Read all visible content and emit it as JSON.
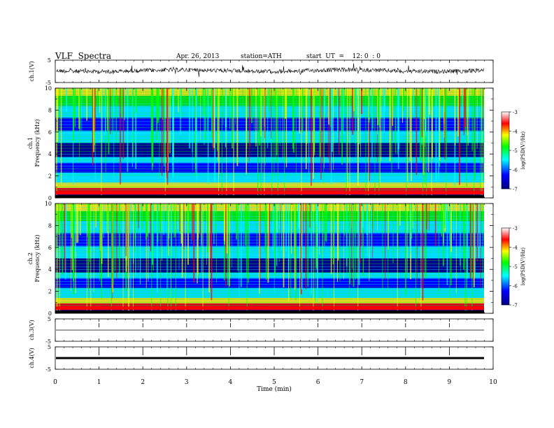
{
  "header": {
    "title": "VLF  Spectra",
    "date": "Apr. 26, 2013",
    "station": "station=ATH",
    "start": "start  UT  =    12: 0  : 0"
  },
  "colors": {
    "colormap": [
      "#000080",
      "#0000ff",
      "#00ffff",
      "#00ff00",
      "#ffff00",
      "#ff0000",
      "#ffffff"
    ],
    "trace": "#000000"
  },
  "chart_data": [
    {
      "type": "line",
      "panel": "ch1-waveform",
      "ylabel": "ch.1(V)",
      "ylim": [
        -5,
        5
      ],
      "yticks": [
        "5",
        "-5"
      ],
      "x_range_min": [
        0,
        9.8
      ],
      "description_level": "noisy trace near +0.2 V with small spikes"
    },
    {
      "type": "heatmap",
      "panel": "ch1-spectrogram",
      "ylabel": "ch.1\nFrequency  (kHz)",
      "ylabel_lines": [
        "ch.1",
        "Frequency  (kHz)"
      ],
      "xlim": [
        0,
        10
      ],
      "ylim": [
        0,
        10
      ],
      "yticks": [
        "0",
        "2",
        "4",
        "6",
        "8",
        "10"
      ],
      "data_extent_min": [
        0,
        9.8
      ],
      "colorbar": {
        "label": "log(PSD(V²/Hz)",
        "range": [
          -7,
          -3
        ],
        "ticks": [
          "-3",
          "-4",
          "-5",
          "-6",
          "-7"
        ]
      }
    },
    {
      "type": "heatmap",
      "panel": "ch2-spectrogram",
      "ylabel_lines": [
        "ch.2",
        "Frequency  (kHz)"
      ],
      "xlim": [
        0,
        10
      ],
      "ylim": [
        0,
        10
      ],
      "yticks": [
        "0",
        "2",
        "4",
        "6",
        "8",
        "10"
      ],
      "data_extent_min": [
        0,
        9.8
      ],
      "colorbar": {
        "label": "log(PSD(V²/Hz)",
        "range": [
          -7,
          -3
        ],
        "ticks": [
          "-3",
          "-4",
          "-5",
          "-6",
          "-7"
        ]
      }
    },
    {
      "type": "line",
      "panel": "ch3-waveform",
      "ylabel": "ch.3(V)",
      "ylim": [
        -5,
        5
      ],
      "yticks": [
        "5",
        "-5"
      ],
      "level": 0
    },
    {
      "type": "line",
      "panel": "ch4-waveform",
      "ylabel": "ch.4(V)",
      "ylim": [
        -5,
        5
      ],
      "yticks": [
        "5",
        "-5"
      ],
      "level": 0
    }
  ],
  "xaxis": {
    "label": "Time  (min)",
    "xlim": [
      0,
      10
    ],
    "ticks": [
      "0",
      "1",
      "2",
      "3",
      "4",
      "5",
      "6",
      "7",
      "8",
      "9",
      "10"
    ]
  }
}
